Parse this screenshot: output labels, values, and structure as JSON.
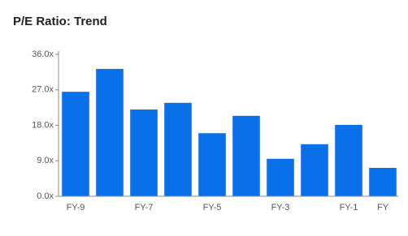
{
  "chart_data": {
    "type": "bar",
    "title": "P/E Ratio: Trend",
    "categories": [
      "FY-9",
      null,
      "FY-7",
      null,
      "FY-5",
      null,
      "FY-3",
      null,
      "FY-1",
      "FY"
    ],
    "values": [
      26.5,
      32.3,
      22.0,
      23.7,
      16.0,
      20.4,
      9.5,
      13.2,
      18.1,
      7.2
    ],
    "color": "#0a70ea",
    "ylim": [
      0,
      36
    ],
    "yticks": [
      {
        "value": 0,
        "label": "0.0x"
      },
      {
        "value": 9,
        "label": "9.0x"
      },
      {
        "value": 18,
        "label": "18.0x"
      },
      {
        "value": 27,
        "label": "27.0x"
      },
      {
        "value": 36,
        "label": "36.0x"
      }
    ],
    "grid": false
  }
}
